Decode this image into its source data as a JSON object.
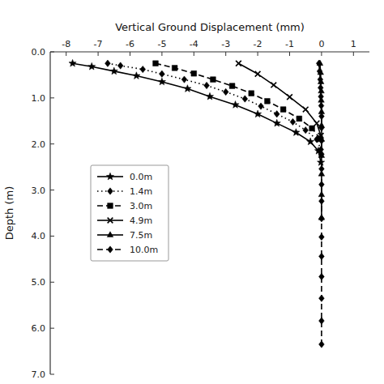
{
  "chart_data": {
    "type": "line",
    "x_label": "Vertical Ground Displacement (mm)",
    "y_label": "Depth (m)",
    "xlim": [
      -8.5,
      1.5
    ],
    "ylim": [
      7.0,
      0.0
    ],
    "xticks": [
      -8,
      -7,
      -6,
      -5,
      -4,
      -3,
      -2,
      -1,
      0,
      1
    ],
    "yticks": [
      {
        "value": 0.0,
        "label": "0.0"
      },
      {
        "value": 1.0,
        "label": "1.0"
      },
      {
        "value": 2.0,
        "label": "2.0"
      },
      {
        "value": 3.0,
        "label": "3.0"
      },
      {
        "value": 4.0,
        "label": "4.0"
      },
      {
        "value": 5.0,
        "label": "5.0"
      },
      {
        "value": 6.0,
        "label": "6.0"
      },
      {
        "value": 7.0,
        "label": "7.0"
      }
    ],
    "grid": false,
    "legend": "center left",
    "series": [
      {
        "name": "0.0m",
        "color": "#000000",
        "line_style": "solid",
        "marker": "star",
        "x": [
          -7.8,
          -7.2,
          -6.5,
          -5.8,
          -5.0,
          -4.2,
          -3.5,
          -2.7,
          -2.0,
          -1.4,
          -0.8,
          -0.35,
          -0.1,
          -0.02
        ],
        "values": [
          0.25,
          0.32,
          0.42,
          0.52,
          0.65,
          0.8,
          0.97,
          1.15,
          1.35,
          1.55,
          1.75,
          1.95,
          2.15,
          2.4
        ]
      },
      {
        "name": "1.4m",
        "color": "#000000",
        "line_style": "dotted",
        "marker": "diamond",
        "x": [
          -6.7,
          -6.3,
          -5.6,
          -5.0,
          -4.3,
          -3.6,
          -3.0,
          -2.4,
          -1.9,
          -1.4,
          -0.9,
          -0.5,
          -0.15,
          -0.02
        ],
        "values": [
          0.25,
          0.3,
          0.38,
          0.48,
          0.6,
          0.73,
          0.87,
          1.02,
          1.18,
          1.35,
          1.52,
          1.7,
          1.9,
          2.12
        ]
      },
      {
        "name": "3.0m",
        "color": "#000000",
        "line_style": "dashed",
        "marker": "square",
        "x": [
          -5.2,
          -4.6,
          -4.0,
          -3.4,
          -2.8,
          -2.2,
          -1.7,
          -1.2,
          -0.7,
          -0.3,
          -0.05
        ],
        "values": [
          0.25,
          0.35,
          0.47,
          0.6,
          0.74,
          0.9,
          1.07,
          1.25,
          1.45,
          1.66,
          1.88
        ]
      },
      {
        "name": "4.9m",
        "color": "#000000",
        "line_style": "solid",
        "marker": "x",
        "x": [
          -2.6,
          -2.0,
          -1.5,
          -1.0,
          -0.5,
          -0.15,
          -0.02
        ],
        "values": [
          0.25,
          0.48,
          0.72,
          0.98,
          1.25,
          1.55,
          1.82
        ]
      },
      {
        "name": "7.5m",
        "color": "#000000",
        "line_style": "solid",
        "marker": "triangle",
        "x": [
          -0.05,
          -0.03,
          -0.02,
          -0.01,
          -0.01,
          0.0,
          0.0,
          0.0,
          0.0,
          0.0,
          0.0,
          0.0
        ],
        "values": [
          0.25,
          0.45,
          0.65,
          0.85,
          1.05,
          1.3,
          1.6,
          1.9,
          2.25,
          2.65,
          3.1,
          3.6
        ]
      },
      {
        "name": "10.0m",
        "color": "#000000",
        "line_style": "dashed",
        "marker": "diamond",
        "x": [
          -0.08,
          -0.06,
          -0.04,
          -0.03,
          -0.02,
          -0.01,
          0.0,
          0.0,
          0.0,
          0.0,
          0.0,
          0.0,
          0.0,
          0.0,
          0.0,
          0.0,
          0.0,
          0.0,
          0.0,
          0.0
        ],
        "values": [
          0.25,
          0.42,
          0.6,
          0.78,
          0.97,
          1.17,
          1.4,
          1.65,
          1.93,
          2.22,
          2.54,
          2.88,
          3.24,
          3.62,
          4.02,
          4.44,
          4.88,
          5.35,
          5.84,
          6.35
        ]
      }
    ]
  }
}
